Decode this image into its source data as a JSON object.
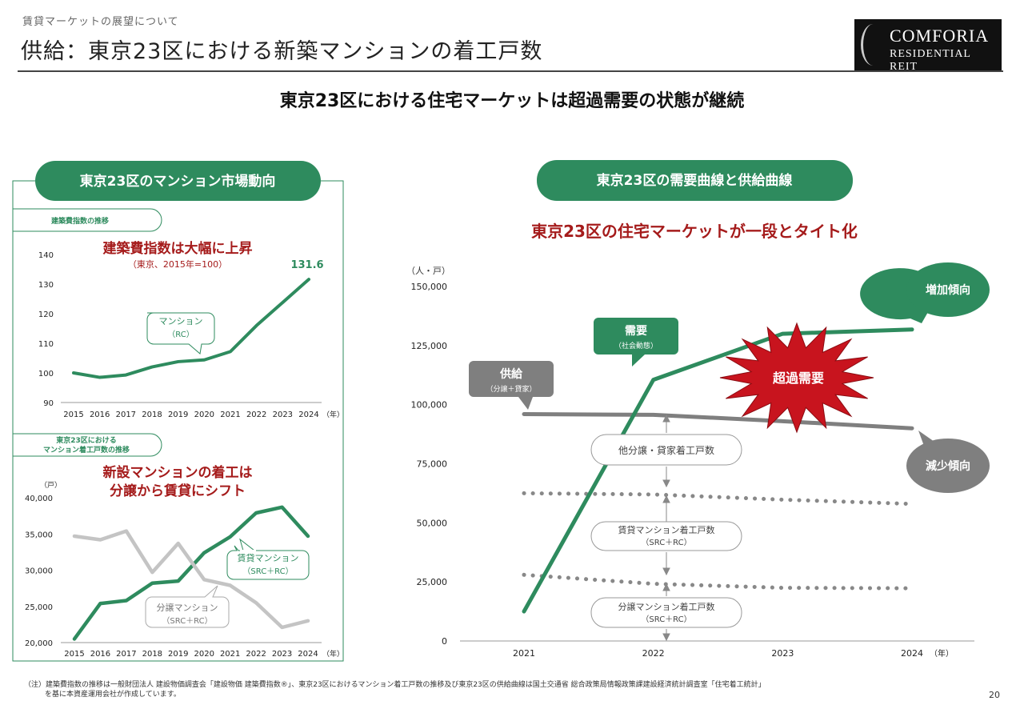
{
  "header": {
    "subtitle": "賃貸マーケットの展望について",
    "title": "供給：東京23区における新築マンションの着工戸数",
    "logo_line1": "COMFORIA",
    "logo_line2": "RESIDENTIAL REIT"
  },
  "headline": "東京23区における住宅マーケットは超過需要の状態が継続",
  "left_panel": {
    "title": "東京23区のマンション市場動向",
    "chart1_tag": "建築費指数の推移",
    "chart1_headline": "建築費指数は大幅に上昇",
    "chart1_subheadline": "（東京、2015年=100）",
    "chart1_callout_line1": "マンション",
    "chart1_callout_line2": "（RC）",
    "chart2_tag_line1": "東京23区における",
    "chart2_tag_line2": "マンション着工戸数の推移",
    "chart2_headline_line1": "新設マンションの着工は",
    "chart2_headline_line2": "分譲から賃貸にシフト",
    "chart2_unit": "（戸）",
    "chart2_callout_rent_line1": "賃貸マンション",
    "chart2_callout_rent_line2": "（SRC＋RC）",
    "chart2_callout_sale_line1": "分譲マンション",
    "chart2_callout_sale_line2": "（SRC＋RC）"
  },
  "right_panel": {
    "title": "東京23区の需要曲線と供給曲線",
    "headline": "東京23区の住宅マーケットが一段とタイト化",
    "unit": "（人・戸）",
    "demand_label": "需要",
    "demand_sub": "（社会動態）",
    "supply_label": "供給",
    "supply_sub": "（分譲＋貸家）",
    "excess_label": "超過需要",
    "increase_label": "増加傾向",
    "decrease_label": "減少傾向",
    "other_label": "他分譲・貸家着工戸数",
    "rent_label_line1": "賃貸マンション着工戸数",
    "rent_label_line2": "（SRC＋RC）",
    "sale_label_line1": "分譲マンション着工戸数",
    "sale_label_line2": "（SRC＋RC）"
  },
  "chart_data": [
    {
      "type": "line",
      "title": "建築費指数の推移",
      "x": [
        2015,
        2016,
        2017,
        2018,
        2019,
        2020,
        2021,
        2022,
        2023,
        2024
      ],
      "x_unit": "（年）",
      "ylim": [
        90,
        140
      ],
      "yticks": [
        90,
        100,
        110,
        120,
        130,
        140
      ],
      "series": [
        {
          "name": "マンション（RC）",
          "color": "#2e8b5e",
          "values": [
            100,
            98.5,
            99.3,
            102,
            103.8,
            104.4,
            107.2,
            116,
            123.8,
            131.6
          ]
        }
      ],
      "end_label": "131.6"
    },
    {
      "type": "line",
      "title": "東京23区におけるマンション着工戸数の推移",
      "x": [
        2015,
        2016,
        2017,
        2018,
        2019,
        2020,
        2021,
        2022,
        2023,
        2024
      ],
      "x_unit": "（年）",
      "ylim": [
        20000,
        40000
      ],
      "yticks": [
        20000,
        25000,
        30000,
        35000,
        40000
      ],
      "ytick_labels": [
        "20,000",
        "25,000",
        "30,000",
        "35,000",
        "40,000"
      ],
      "series": [
        {
          "name": "賃貸マンション（SRC＋RC）",
          "color": "#2e8b5e",
          "values": [
            20500,
            25400,
            25800,
            28200,
            28500,
            32400,
            34600,
            37900,
            38700,
            34700
          ]
        },
        {
          "name": "分譲マンション（SRC＋RC）",
          "color": "#c4c4c4",
          "values": [
            34700,
            34200,
            35400,
            29700,
            33700,
            28700,
            27900,
            25500,
            22100,
            23000
          ]
        }
      ]
    },
    {
      "type": "line",
      "title": "東京23区の需要曲線と供給曲線",
      "x": [
        "2021",
        "2022",
        "2023",
        "2024"
      ],
      "x_unit": "（年）",
      "ylim": [
        0,
        150000
      ],
      "yticks": [
        0,
        25000,
        50000,
        75000,
        100000,
        125000,
        150000
      ],
      "ytick_labels": [
        "0",
        "25,000",
        "50,000",
        "75,000",
        "100,000",
        "125,000",
        "150,000"
      ],
      "series": [
        {
          "name": "需要（社会動態）",
          "color": "#2e8b5e",
          "values": [
            12500,
            110500,
            130000,
            131800
          ]
        },
        {
          "name": "供給（分譲＋貸家）",
          "color": "#7f7f7f",
          "values": [
            96000,
            95700,
            93000,
            90000
          ]
        },
        {
          "name": "賃貸マンション着工戸数",
          "color": "#7f7f7f",
          "style": "dotted",
          "values": [
            62500,
            62000,
            59800,
            58000
          ]
        },
        {
          "name": "分譲マンション着工戸数",
          "color": "#7f7f7f",
          "style": "dotted",
          "values": [
            28000,
            24200,
            22500,
            22300
          ]
        }
      ]
    }
  ],
  "footnote_line1": "（注）建築費指数の推移は一般財団法人 建設物価調査会「建設物価 建築費指数®」、東京23区におけるマンション着工戸数の推移及び東京23区の供給曲線は国土交通省 総合政策局情報政策課建設経済統計調査室「住宅着工統計」",
  "footnote_line2": "を基に本資産運用会社が作成しています。",
  "page_number": "20"
}
